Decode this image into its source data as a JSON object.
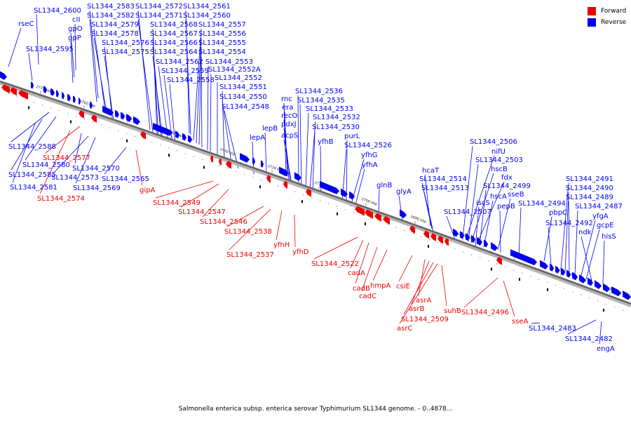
{
  "legend": [
    {
      "label": "Forward",
      "color": "#ee0000"
    },
    {
      "label": "Reverse",
      "color": "#0000ee"
    }
  ],
  "caption": "Salmonella enterica subsp. enterica serovar Typhimurium SL1344 genome. - 0..4878...",
  "colors": {
    "forward": "#ee0000",
    "reverse": "#0000ee",
    "backbone": "#666666"
  },
  "scale_ticks": [
    "2770 kbp",
    "2760 kbp",
    "2750 kbp",
    "2740 kbp",
    "2730 kbp",
    "2720 kbp",
    "2710 kbp",
    "2700 kbp",
    "2690 kbp",
    "2680 kbp",
    "2670 kbp",
    "2660 kbp",
    "2650 kbp"
  ],
  "reverse_labels": [
    "rseC",
    "SL1344_2600",
    "cII",
    "gpO",
    "gpP",
    "SL1344_2595",
    "SL1344_2583",
    "SL1344_2582",
    "SL1344_2579",
    "SL1344_2578",
    "SL1344_2576",
    "SL1344_2575",
    "SL1344_2572",
    "SL1344_2571",
    "SL1344_2568",
    "SL1344_2567",
    "SL1344_2566",
    "SL1344_2564",
    "SL1344_2562",
    "SL1344_2559",
    "SL1344_2558",
    "SL1344_2561",
    "SL1344_2560",
    "SL1344_2557",
    "SL1344_2556",
    "SL1344_2555",
    "SL1344_2554",
    "SL1344_2553",
    "SL1344_2552A",
    "SL1344_2552",
    "SL1344_2551",
    "SL1344_2550",
    "SL1344_2548",
    "lepB",
    "lepA",
    "rnc",
    "era",
    "recO",
    "pdxJ",
    "acpS",
    "SL1344_2536",
    "SL1344_2535",
    "SL1344_2533",
    "SL1344_2532",
    "SL1344_2530",
    "yfhB",
    "purL",
    "SL1344_2526",
    "yfhG",
    "yfhA",
    "glnB",
    "glyA",
    "hcaT",
    "SL1344_2514",
    "SL1344_2513",
    "SL1344_2506",
    "nifU",
    "SL1344_2503",
    "hscB",
    "fdx",
    "SL1344_2499",
    "hscA",
    "iscS",
    "sseB",
    "pepB",
    "SL1344_2507",
    "SL1344_2494",
    "pbpC",
    "SL1344_2492",
    "SL1344_2491",
    "SL1344_2490",
    "SL1344_2489",
    "SL1344_2487",
    "yfgA",
    "gcpE",
    "ndk",
    "hisS",
    "SL1344_2588",
    "SL1344_2580",
    "SL1344_2585",
    "SL1344_2581",
    "SL1344_2570",
    "SL1344_2573",
    "SL1344_2569",
    "SL1344_2565",
    "SL1344_2483",
    "SL1344_2482",
    "engA"
  ],
  "forward_labels": [
    "SL1344_2577",
    "SL1344_2574",
    "gipA",
    "SL1344_2549",
    "SL1344_2547",
    "SL1344_2546",
    "SL1344_2538",
    "SL1344_2537",
    "yfhH",
    "yfhD",
    "SL1344_2522",
    "cadA",
    "cadB",
    "cadC",
    "hmpA",
    "csiE",
    "asrA",
    "asrB",
    "SL1344_2509",
    "asrC",
    "suhB",
    "SL1344_2496",
    "sseA"
  ]
}
